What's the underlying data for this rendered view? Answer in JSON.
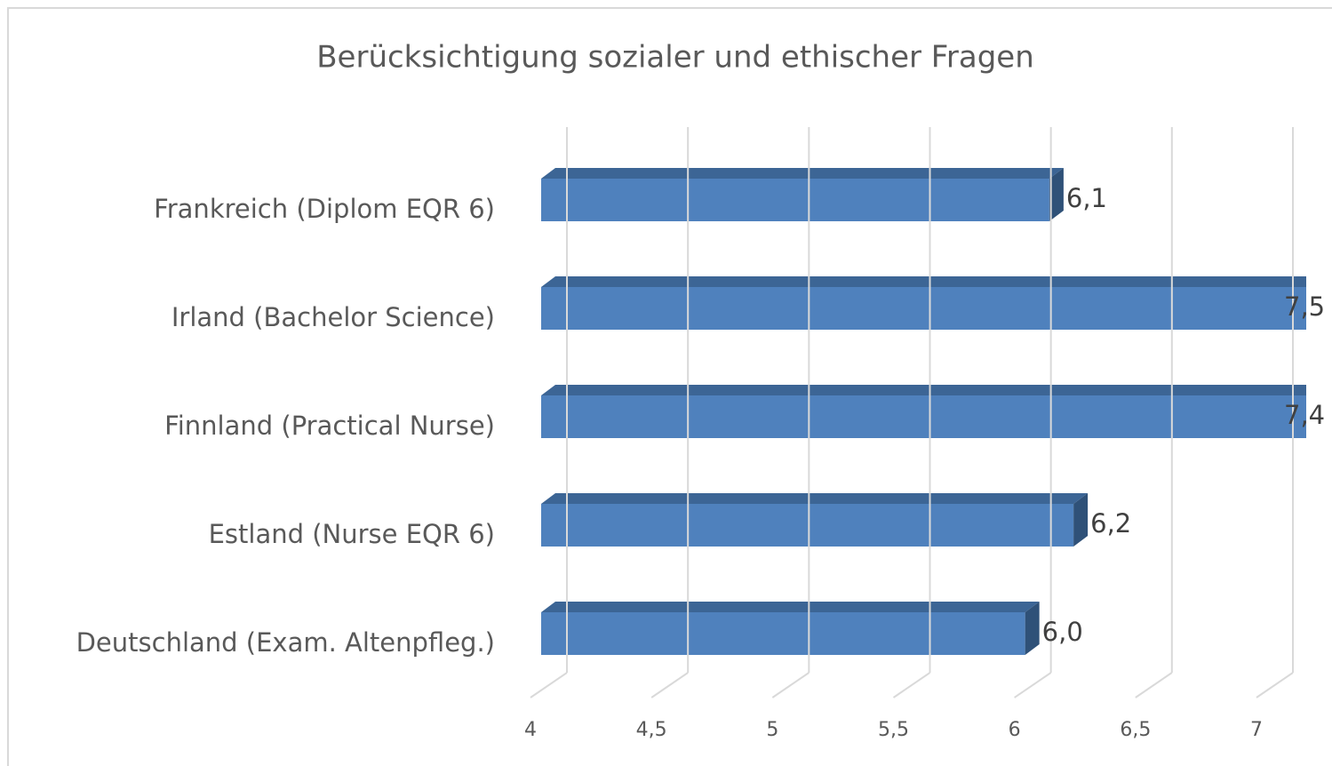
{
  "chart_data": {
    "type": "bar",
    "orientation": "horizontal",
    "title": "Berücksichtigung sozialer und ethischer Fragen",
    "categories": [
      "Frankreich (Diplom EQR 6)",
      "Irland (Bachelor Science)",
      "Finnland (Practical Nurse)",
      "Estland (Nurse EQR 6)",
      "Deutschland (Exam. Altenpfleg.)"
    ],
    "values": [
      6.1,
      7.5,
      7.4,
      6.2,
      6.0
    ],
    "value_labels": [
      "6,1",
      "7,5",
      "7,4",
      "6,2",
      "6,0"
    ],
    "color": "#4f81bd",
    "xlim": [
      4,
      7
    ],
    "xticks": [
      4,
      {
        "value": 4.5,
        "label": "4,5"
      },
      5,
      {
        "value": 5.5,
        "label": "5,5"
      },
      6,
      {
        "value": 6.5,
        "label": "6,5"
      },
      7
    ],
    "grid": true
  }
}
